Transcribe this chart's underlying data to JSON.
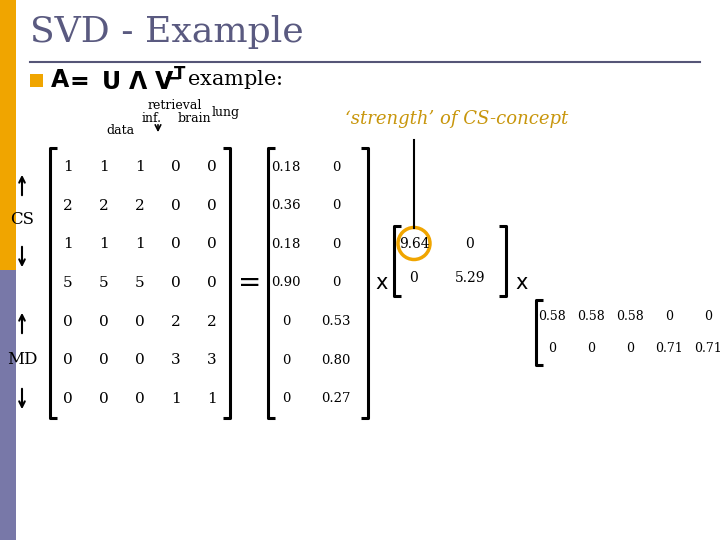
{
  "title": "SVD - Example",
  "bg_color": "#ffffff",
  "bullet_color": "#f0a500",
  "title_color": "#5a5a80",
  "title_fontsize": 26,
  "strength_color": "#c8960c",
  "left_accent_top_color": "#f0a500",
  "left_accent_bottom_color": "#7878a8",
  "matrix_A": [
    [
      1,
      1,
      1,
      0,
      0
    ],
    [
      2,
      2,
      2,
      0,
      0
    ],
    [
      1,
      1,
      1,
      0,
      0
    ],
    [
      5,
      5,
      5,
      0,
      0
    ],
    [
      0,
      0,
      0,
      2,
      2
    ],
    [
      0,
      0,
      0,
      3,
      3
    ],
    [
      0,
      0,
      0,
      1,
      1
    ]
  ],
  "matrix_U": [
    [
      "0.18",
      "0"
    ],
    [
      "0.36",
      "0"
    ],
    [
      "0.18",
      "0"
    ],
    [
      "0.90",
      "0"
    ],
    [
      "0",
      "0.53"
    ],
    [
      "0",
      "0.80"
    ],
    [
      "0",
      "0.27"
    ]
  ],
  "matrix_Sigma": [
    [
      "9.64",
      "0"
    ],
    [
      "0",
      "5.29"
    ]
  ],
  "matrix_VT": [
    [
      "0.58",
      "0.58",
      "0.58",
      "0",
      "0"
    ],
    [
      "0",
      "0",
      "0",
      "0.71",
      "0.71"
    ]
  ],
  "strength_text": "‘strength’ of CS-concept",
  "circle_color": "#f0a500",
  "line_color": "#555577"
}
